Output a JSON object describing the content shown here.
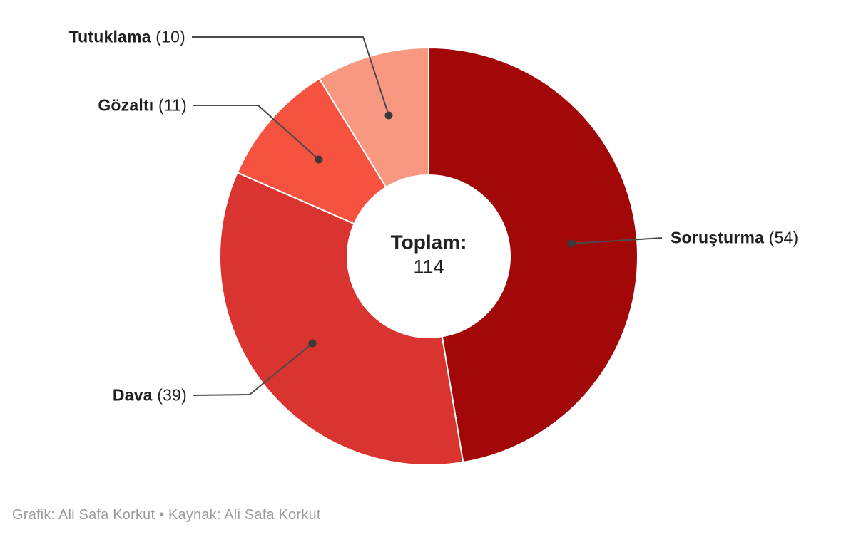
{
  "chart_data": {
    "type": "pie",
    "subtype": "donut",
    "title": "",
    "center_label": "Toplam:",
    "center_value": "114",
    "total": 114,
    "categories": [
      "Soruşturma",
      "Dava",
      "Gözaltı",
      "Tutuklama"
    ],
    "values": [
      54,
      39,
      11,
      10
    ],
    "value_labels": [
      "(54)",
      "(39)",
      "(11)",
      "(10)"
    ],
    "series": [
      {
        "name": "Soruşturma",
        "value": 54,
        "color": "#a30808"
      },
      {
        "name": "Dava",
        "value": 39,
        "color": "#d93430"
      },
      {
        "name": "Gözaltı",
        "value": 11,
        "color": "#f55240"
      },
      {
        "name": "Tutuklama",
        "value": 10,
        "color": "#f99880"
      }
    ],
    "colors": [
      "#a30808",
      "#d93430",
      "#f55240",
      "#f99880"
    ],
    "start_angle_deg": 0,
    "direction": "clockwise",
    "grid": false,
    "legend_position": "callout-labels",
    "slice_stroke_color": "#ffffff",
    "callout_line_color": "#4a4a4a",
    "callout_dot_color": "#3a3a3a",
    "label_text_color": "#1f1f1f",
    "background_color": "#ffffff"
  },
  "footer": {
    "credit": "Grafik: Ali Safa Korkut • Kaynak: Ali Safa Korkut"
  }
}
